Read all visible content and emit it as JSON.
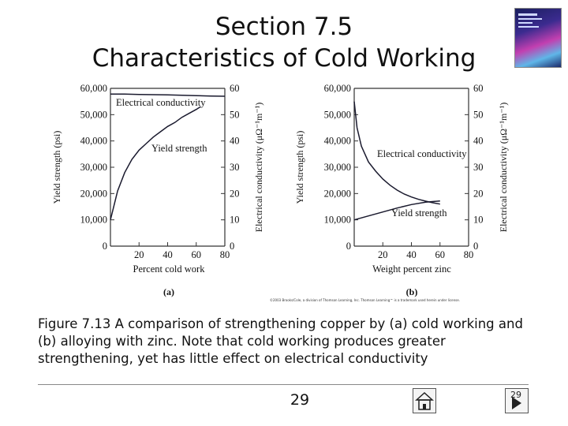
{
  "title": {
    "line1": "Section 7.5",
    "line2": "Characteristics of Cold Working"
  },
  "copyright": "©2003 Brooks/Cole, a division of Thomson Learning, Inc. Thomson Learning™ is a trademark used herein under license.",
  "caption": "Figure 7.13 A comparison of strengthening copper by (a) cold working and (b) alloying with zinc. Note that cold working produces greater strengthening, yet has little effect on electrical conductivity",
  "footer": {
    "page": "29",
    "nav_page": "29"
  },
  "icons": {
    "home": "home-icon",
    "next": "next-slide-icon",
    "cover": "book-cover-image"
  },
  "colors": {
    "curve": "#1a1a2e",
    "axis": "#333333",
    "text": "#111111"
  },
  "chart_data": [
    {
      "type": "line",
      "panel": "(a)",
      "xlabel": "Percent cold work",
      "ylabel_left": "Yield strength (psi)",
      "ylabel_right": "Electrical conductivity (μΩ⁻¹m⁻¹)",
      "xlim": [
        0,
        80
      ],
      "x_ticks": [
        "0",
        "20",
        "40",
        "60",
        "80"
      ],
      "ylim_left": [
        0,
        60000
      ],
      "y_ticks_left": [
        "0",
        "10,000",
        "20,000",
        "30,000",
        "40,000",
        "50,000",
        "60,000"
      ],
      "ylim_right": [
        0,
        60
      ],
      "y_ticks_right": [
        "0",
        "10",
        "20",
        "30",
        "40",
        "50",
        "60"
      ],
      "series": [
        {
          "name": "Yield strength",
          "axis": "left",
          "x": [
            0,
            5,
            10,
            15,
            20,
            25,
            30,
            35,
            40,
            45,
            50,
            55,
            60,
            63
          ],
          "y": [
            10000,
            21000,
            28000,
            33000,
            36500,
            39000,
            41500,
            43500,
            45500,
            47000,
            49000,
            50500,
            52000,
            53000
          ]
        },
        {
          "name": "Electrical conductivity",
          "axis": "right",
          "x": [
            0,
            10,
            20,
            30,
            40,
            50,
            60,
            70,
            80
          ],
          "y": [
            57.8,
            57.8,
            57.7,
            57.6,
            57.5,
            57.4,
            57.2,
            57.1,
            57
          ]
        }
      ]
    },
    {
      "type": "line",
      "panel": "(b)",
      "xlabel": "Weight percent zinc",
      "ylabel_left": "Yield strength (psi)",
      "ylabel_right": "Electrical conductivity (μΩ⁻¹m⁻¹)",
      "xlim": [
        0,
        80
      ],
      "x_ticks": [
        "0",
        "20",
        "40",
        "60",
        "80"
      ],
      "ylim_left": [
        0,
        60000
      ],
      "y_ticks_left": [
        "0",
        "10,000",
        "20,000",
        "30,000",
        "40,000",
        "50,000",
        "60,000"
      ],
      "ylim_right": [
        0,
        60
      ],
      "y_ticks_right": [
        "0",
        "10",
        "20",
        "30",
        "40",
        "50",
        "60"
      ],
      "series": [
        {
          "name": "Electrical conductivity",
          "axis": "right",
          "x": [
            0,
            2,
            5,
            10,
            15,
            20,
            25,
            30,
            35,
            40,
            45,
            50,
            55,
            60
          ],
          "y": [
            55,
            45,
            38,
            32,
            28.5,
            25.5,
            23.2,
            21.3,
            19.8,
            18.7,
            17.8,
            17.1,
            16.5,
            16
          ]
        },
        {
          "name": "Yield strength",
          "axis": "left",
          "x": [
            0,
            10,
            20,
            30,
            40,
            50,
            60
          ],
          "y": [
            10000,
            11500,
            13000,
            14500,
            15800,
            16700,
            17200
          ]
        }
      ]
    }
  ]
}
